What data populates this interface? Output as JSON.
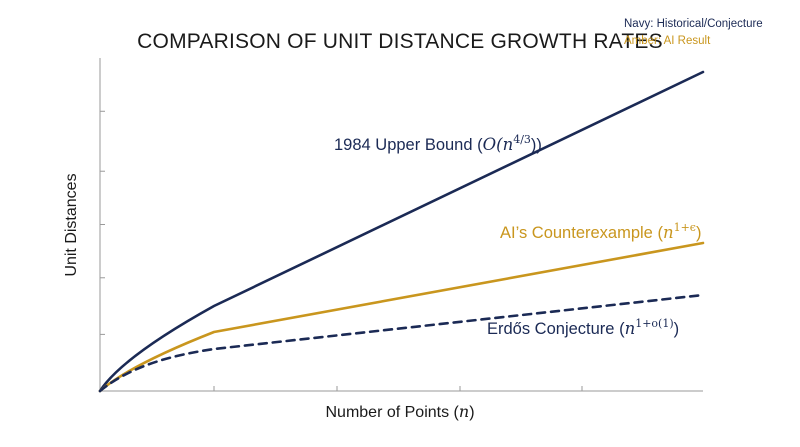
{
  "chart_data": {
    "type": "line",
    "title": "COMPARISON OF UNIT DISTANCE GROWTH RATES",
    "xlabel": "Number of Points (n)",
    "ylabel": "Unit Distances",
    "legend_note": [
      "Navy: Historical/Conjecture",
      "Amber: AI Result"
    ],
    "grid": false,
    "x": [
      0,
      0.5,
      1,
      2,
      5
    ],
    "ylim": [
      0,
      1
    ],
    "series": [
      {
        "name": "1984 Upper Bound (O(n^4/3))",
        "label_text": "1984 Upper Bound (",
        "label_math": "O(n",
        "label_sup": "4/3",
        "label_end": "))",
        "style": "solid",
        "color": "#1b2a55",
        "values": [
          0,
          0.1,
          0.28,
          0.41,
          0.86
        ]
      },
      {
        "name": "AI's Counterexample (n^1+ε)",
        "label_text": "AI’s Counterexample (",
        "label_math": "n",
        "label_sup": "1+ϵ",
        "label_end": ")",
        "style": "solid",
        "color": "#c9961e",
        "values": [
          0,
          0.1,
          0.23,
          0.29,
          0.49
        ]
      },
      {
        "name": "Erdős Conjecture (n^1+o(1))",
        "label_text": "Erdős Conjecture (",
        "label_math": "n",
        "label_sup": "1+o(1)",
        "label_end": ")",
        "style": "dashed",
        "color": "#1b2a55",
        "values": [
          0,
          0.08,
          0.15,
          0.2,
          0.33
        ]
      }
    ]
  }
}
